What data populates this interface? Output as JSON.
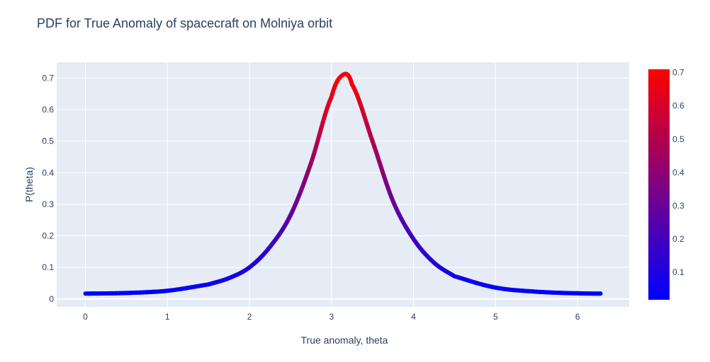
{
  "chart_data": {
    "type": "line",
    "title": "PDF for True Anomaly of spacecraft on Molniya orbit",
    "xlabel": "True anomaly, theta",
    "ylabel": "P(theta)",
    "xlim": [
      -0.35,
      6.63
    ],
    "ylim": [
      -0.025,
      0.75
    ],
    "x_ticks": [
      "0",
      "1",
      "2",
      "3",
      "4",
      "5",
      "6"
    ],
    "y_ticks": [
      "0",
      "0.1",
      "0.2",
      "0.3",
      "0.4",
      "0.5",
      "0.6",
      "0.7"
    ],
    "grid": true,
    "legend": "none",
    "x": [
      0,
      0.5,
      1.0,
      1.5,
      1.75,
      2.0,
      2.25,
      2.5,
      2.75,
      3.0,
      3.14159,
      3.25,
      3.5,
      3.75,
      4.0,
      4.25,
      4.5,
      5.0,
      5.5,
      6.0,
      6.28
    ],
    "y": [
      0.017,
      0.019,
      0.026,
      0.046,
      0.066,
      0.1,
      0.165,
      0.265,
      0.43,
      0.64,
      0.71,
      0.68,
      0.5,
      0.31,
      0.19,
      0.115,
      0.072,
      0.036,
      0.023,
      0.018,
      0.017
    ],
    "colorscale": {
      "low_color": "#0000ff",
      "high_color": "#ff0000",
      "range": [
        0.017,
        0.71
      ],
      "tick_labels": [
        "0.1",
        "0.2",
        "0.3",
        "0.4",
        "0.5",
        "0.6",
        "0.7"
      ]
    },
    "colors": {
      "plot_bg": "#e5ecf6",
      "grid": "#ffffff",
      "text": "#2a3f5f"
    }
  }
}
